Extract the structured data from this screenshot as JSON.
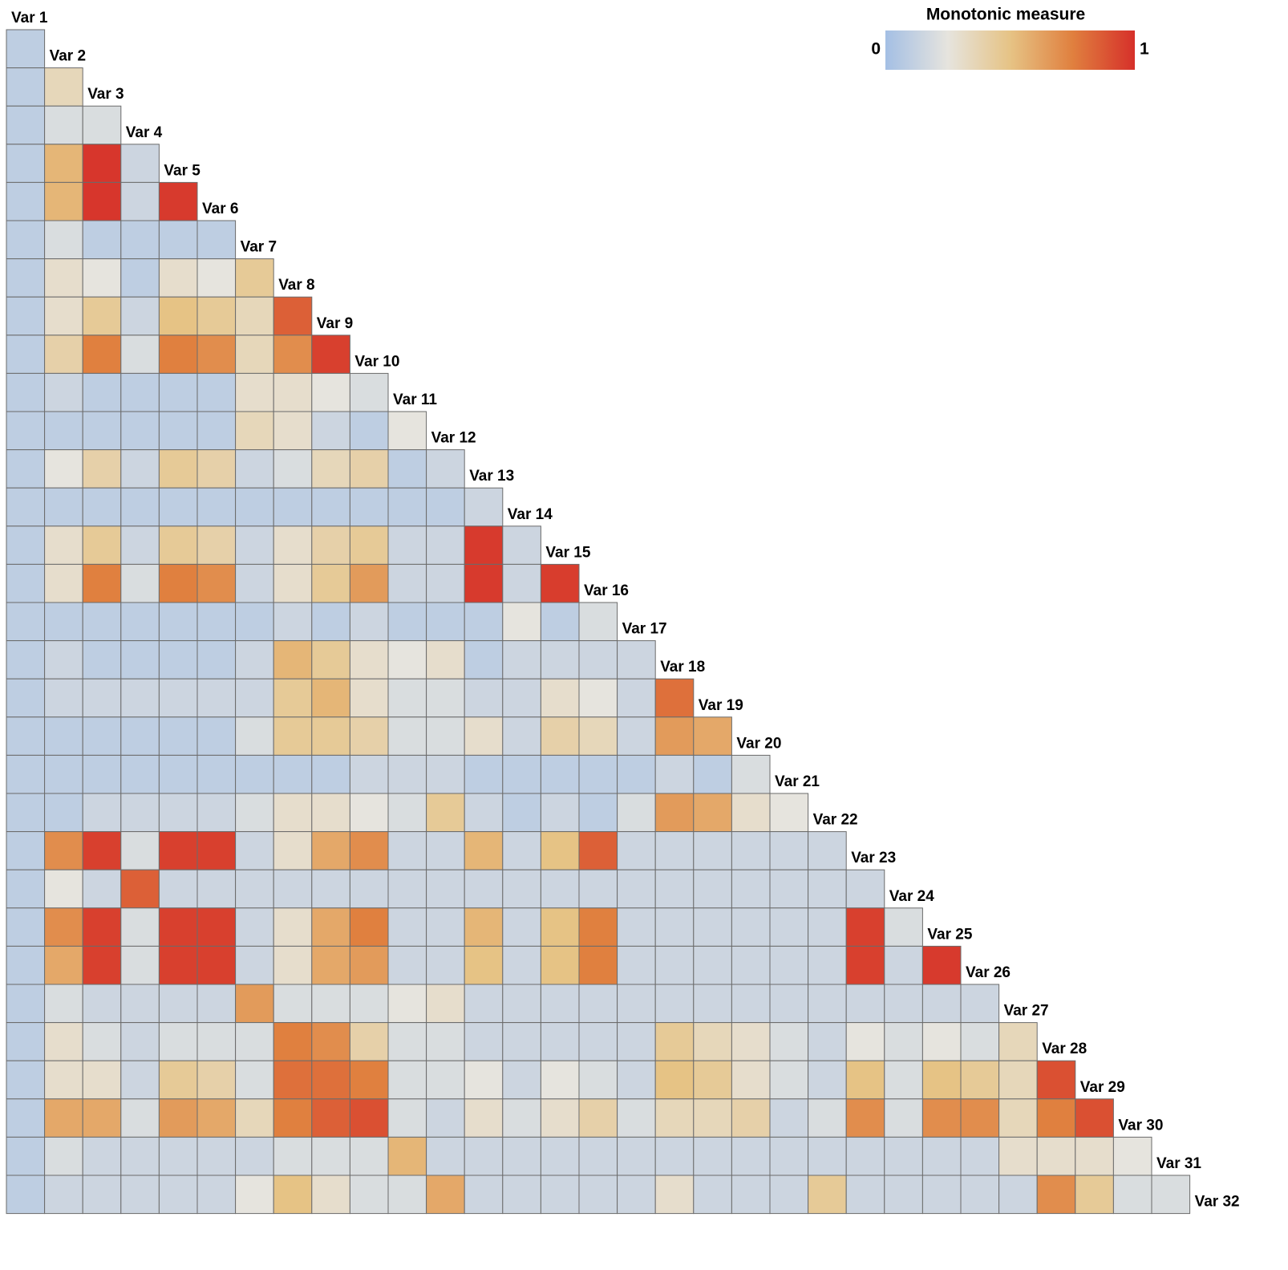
{
  "chart_data": {
    "type": "heatmap",
    "legend_title": "Monotonic measure",
    "clim": [
      0,
      1
    ],
    "cticks": [
      0,
      1
    ],
    "colormap": [
      "#a4bfe4",
      "#e6e4de",
      "#e6c385",
      "#e0803f",
      "#d6302a"
    ],
    "variables": [
      "Var 1",
      "Var 2",
      "Var 3",
      "Var 4",
      "Var 5",
      "Var 6",
      "Var 7",
      "Var 8",
      "Var 9",
      "Var 10",
      "Var 11",
      "Var 12",
      "Var 13",
      "Var 14",
      "Var 15",
      "Var 16",
      "Var 17",
      "Var 18",
      "Var 19",
      "Var 20",
      "Var 21",
      "Var 22",
      "Var 23",
      "Var 24",
      "Var 25",
      "Var 26",
      "Var 27",
      "Var 28",
      "Var 29",
      "Var 30",
      "Var 31",
      "Var 32"
    ],
    "values": [
      [
        0.1
      ],
      [
        0.1,
        0.35
      ],
      [
        0.1,
        0.2,
        0.2
      ],
      [
        0.1,
        0.55,
        0.98,
        0.15
      ],
      [
        0.1,
        0.55,
        0.98,
        0.15,
        0.97
      ],
      [
        0.1,
        0.2,
        0.1,
        0.1,
        0.1,
        0.1
      ],
      [
        0.1,
        0.3,
        0.25,
        0.1,
        0.3,
        0.25,
        0.45
      ],
      [
        0.1,
        0.3,
        0.45,
        0.15,
        0.5,
        0.45,
        0.35,
        0.85
      ],
      [
        0.1,
        0.4,
        0.75,
        0.2,
        0.75,
        0.7,
        0.35,
        0.7,
        0.95
      ],
      [
        0.1,
        0.15,
        0.1,
        0.1,
        0.1,
        0.1,
        0.3,
        0.3,
        0.25,
        0.2
      ],
      [
        0.1,
        0.1,
        0.1,
        0.1,
        0.1,
        0.1,
        0.35,
        0.3,
        0.15,
        0.1,
        0.25
      ],
      [
        0.1,
        0.25,
        0.4,
        0.15,
        0.45,
        0.4,
        0.15,
        0.2,
        0.35,
        0.4,
        0.1,
        0.15
      ],
      [
        0.1,
        0.1,
        0.1,
        0.1,
        0.1,
        0.1,
        0.1,
        0.1,
        0.1,
        0.1,
        0.1,
        0.1,
        0.15
      ],
      [
        0.1,
        0.3,
        0.45,
        0.15,
        0.45,
        0.4,
        0.15,
        0.3,
        0.4,
        0.45,
        0.15,
        0.15,
        0.97,
        0.15
      ],
      [
        0.1,
        0.3,
        0.75,
        0.2,
        0.75,
        0.7,
        0.15,
        0.3,
        0.45,
        0.65,
        0.15,
        0.15,
        0.97,
        0.15,
        0.96
      ],
      [
        0.1,
        0.1,
        0.1,
        0.1,
        0.1,
        0.1,
        0.1,
        0.15,
        0.1,
        0.15,
        0.1,
        0.1,
        0.1,
        0.25,
        0.1,
        0.2
      ],
      [
        0.1,
        0.15,
        0.1,
        0.1,
        0.1,
        0.1,
        0.15,
        0.55,
        0.45,
        0.3,
        0.25,
        0.3,
        0.1,
        0.15,
        0.15,
        0.15,
        0.15
      ],
      [
        0.1,
        0.15,
        0.15,
        0.15,
        0.15,
        0.15,
        0.15,
        0.45,
        0.55,
        0.3,
        0.2,
        0.2,
        0.15,
        0.15,
        0.3,
        0.25,
        0.15,
        0.8
      ],
      [
        0.1,
        0.1,
        0.1,
        0.1,
        0.1,
        0.1,
        0.2,
        0.45,
        0.45,
        0.4,
        0.2,
        0.2,
        0.3,
        0.15,
        0.4,
        0.35,
        0.15,
        0.65,
        0.6
      ],
      [
        0.1,
        0.1,
        0.1,
        0.1,
        0.1,
        0.1,
        0.1,
        0.1,
        0.1,
        0.15,
        0.15,
        0.15,
        0.1,
        0.1,
        0.1,
        0.1,
        0.1,
        0.15,
        0.1,
        0.2
      ],
      [
        0.1,
        0.1,
        0.15,
        0.15,
        0.15,
        0.15,
        0.2,
        0.3,
        0.3,
        0.25,
        0.2,
        0.45,
        0.15,
        0.1,
        0.15,
        0.1,
        0.2,
        0.65,
        0.6,
        0.3,
        0.25
      ],
      [
        0.1,
        0.7,
        0.95,
        0.2,
        0.95,
        0.95,
        0.15,
        0.3,
        0.6,
        0.7,
        0.15,
        0.15,
        0.55,
        0.15,
        0.5,
        0.85,
        0.15,
        0.15,
        0.15,
        0.15,
        0.15,
        0.15
      ],
      [
        0.1,
        0.25,
        0.15,
        0.85,
        0.15,
        0.15,
        0.15,
        0.15,
        0.15,
        0.15,
        0.15,
        0.15,
        0.15,
        0.15,
        0.15,
        0.15,
        0.15,
        0.15,
        0.15,
        0.15,
        0.15,
        0.15,
        0.15
      ],
      [
        0.1,
        0.7,
        0.95,
        0.2,
        0.95,
        0.95,
        0.15,
        0.3,
        0.6,
        0.75,
        0.15,
        0.15,
        0.55,
        0.15,
        0.5,
        0.75,
        0.15,
        0.15,
        0.15,
        0.15,
        0.15,
        0.15,
        0.95,
        0.2
      ],
      [
        0.1,
        0.6,
        0.95,
        0.2,
        0.95,
        0.95,
        0.15,
        0.3,
        0.6,
        0.65,
        0.15,
        0.15,
        0.5,
        0.15,
        0.5,
        0.75,
        0.15,
        0.15,
        0.15,
        0.15,
        0.15,
        0.15,
        0.95,
        0.15,
        0.97
      ],
      [
        0.1,
        0.2,
        0.15,
        0.15,
        0.15,
        0.15,
        0.65,
        0.2,
        0.2,
        0.2,
        0.25,
        0.3,
        0.15,
        0.15,
        0.15,
        0.15,
        0.15,
        0.15,
        0.15,
        0.15,
        0.15,
        0.15,
        0.15,
        0.15,
        0.15,
        0.15
      ],
      [
        0.1,
        0.3,
        0.2,
        0.15,
        0.2,
        0.2,
        0.2,
        0.75,
        0.7,
        0.4,
        0.2,
        0.2,
        0.15,
        0.15,
        0.15,
        0.15,
        0.15,
        0.45,
        0.35,
        0.3,
        0.2,
        0.15,
        0.25,
        0.2,
        0.25,
        0.2,
        0.35
      ],
      [
        0.1,
        0.3,
        0.3,
        0.15,
        0.45,
        0.4,
        0.2,
        0.8,
        0.8,
        0.75,
        0.2,
        0.2,
        0.25,
        0.15,
        0.25,
        0.2,
        0.15,
        0.5,
        0.45,
        0.3,
        0.2,
        0.15,
        0.5,
        0.2,
        0.5,
        0.45,
        0.35,
        0.9
      ],
      [
        0.1,
        0.6,
        0.6,
        0.2,
        0.65,
        0.6,
        0.35,
        0.75,
        0.85,
        0.9,
        0.2,
        0.15,
        0.3,
        0.2,
        0.3,
        0.4,
        0.2,
        0.35,
        0.35,
        0.4,
        0.15,
        0.2,
        0.7,
        0.2,
        0.7,
        0.7,
        0.35,
        0.75,
        0.9
      ],
      [
        0.1,
        0.2,
        0.15,
        0.15,
        0.15,
        0.15,
        0.15,
        0.2,
        0.2,
        0.2,
        0.55,
        0.15,
        0.15,
        0.15,
        0.15,
        0.15,
        0.15,
        0.15,
        0.15,
        0.15,
        0.15,
        0.15,
        0.15,
        0.15,
        0.15,
        0.15,
        0.3,
        0.3,
        0.3,
        0.25
      ],
      [
        0.1,
        0.15,
        0.15,
        0.15,
        0.15,
        0.15,
        0.25,
        0.5,
        0.3,
        0.2,
        0.2,
        0.6,
        0.15,
        0.15,
        0.15,
        0.15,
        0.15,
        0.3,
        0.15,
        0.15,
        0.15,
        0.45,
        0.15,
        0.15,
        0.15,
        0.15,
        0.15,
        0.7,
        0.45,
        0.2,
        0.2
      ]
    ]
  }
}
